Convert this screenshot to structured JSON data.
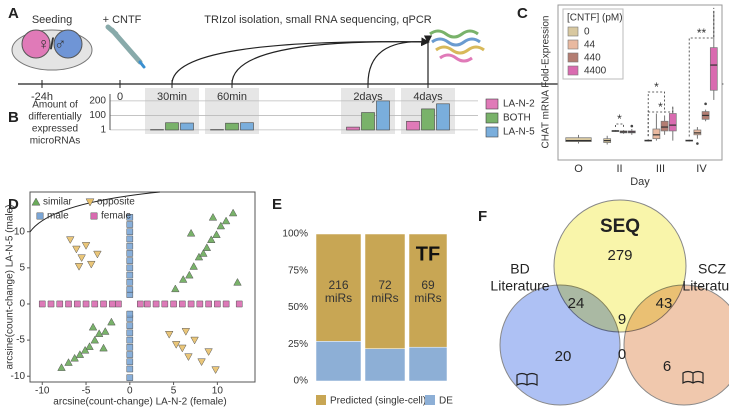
{
  "panel_labels": [
    "A",
    "B",
    "C",
    "D",
    "E",
    "F"
  ],
  "timeline": {
    "seeding": "Seeding",
    "dish_label": "♀/♂",
    "treatment": "+ CNTF",
    "protocol": "TRIzol isolation, small RNA sequencing, qPCR",
    "times": [
      "-24h",
      "0",
      "30min",
      "60min",
      "2days",
      "4days"
    ]
  },
  "chart_data": [
    {
      "type": "bar",
      "ylabel": [
        "Amount of",
        "differentially",
        "expressed",
        "microRNAs"
      ],
      "categories": [
        null,
        null,
        null,
        null
      ],
      "series": [
        {
          "name": "LA-N-2",
          "color": "#e07ab8",
          "values": [
            3,
            3,
            20,
            60
          ]
        },
        {
          "name": "BOTH",
          "color": "#79b26a",
          "values": [
            50,
            47,
            120,
            145
          ]
        },
        {
          "name": "LA-N-5",
          "color": "#7aaedc",
          "values": [
            48,
            50,
            200,
            180
          ]
        }
      ],
      "ylim": [
        0,
        220
      ],
      "yticks": [
        1,
        100,
        200
      ],
      "grid": true
    },
    {
      "type": "box",
      "xlabel": "Day",
      "ylabel": "CHAT mRNA Fold-Expression",
      "legend_title": "[CNTF] (pM)",
      "categories": [
        "O",
        "II",
        "III",
        "IV"
      ],
      "ylim": [
        0,
        8
      ],
      "series": [
        {
          "name": "0",
          "color": "#d8c8a0",
          "boxes": [
            {
              "min": 0.85,
              "q1": 0.95,
              "median": 1.0,
              "q3": 1.15,
              "max": 1.3
            },
            {
              "min": 0.8,
              "q1": 0.9,
              "median": 1.0,
              "q3": 1.1,
              "max": 1.25
            },
            {
              "min": 0.95,
              "q1": 0.98,
              "median": 1.0,
              "q3": 1.03,
              "max": 1.08
            },
            {
              "min": 0.95,
              "q1": 0.98,
              "median": 1.0,
              "q3": 1.03,
              "max": 1.06
            }
          ]
        },
        {
          "name": "44",
          "color": "#e9b9a0",
          "boxes": [
            null,
            {
              "min": 1.45,
              "q1": 1.48,
              "median": 1.5,
              "q3": 1.52,
              "max": 1.55
            },
            {
              "min": 1.0,
              "q1": 1.1,
              "median": 1.3,
              "q3": 1.6,
              "max": 2.4
            },
            {
              "min": 1.1,
              "q1": 1.3,
              "median": 1.4,
              "q3": 1.55,
              "max": 1.7,
              "outliers": [
                0.85
              ]
            }
          ]
        },
        {
          "name": "440",
          "color": "#b37d72",
          "boxes": [
            null,
            {
              "min": 1.35,
              "q1": 1.4,
              "median": 1.45,
              "q3": 1.5,
              "max": 1.55
            },
            {
              "min": 1.3,
              "q1": 1.5,
              "median": 1.7,
              "q3": 2.0,
              "max": 2.3
            },
            {
              "min": 2.0,
              "q1": 2.1,
              "median": 2.3,
              "q3": 2.5,
              "max": 2.6,
              "outliers": [
                2.9
              ]
            }
          ]
        },
        {
          "name": "4400",
          "color": "#d96bb0",
          "boxes": [
            null,
            {
              "min": 1.3,
              "q1": 1.4,
              "median": 1.45,
              "q3": 1.5,
              "max": 1.6,
              "outliers": [
                1.75
              ]
            },
            {
              "min": 1.0,
              "q1": 1.5,
              "median": 1.8,
              "q3": 2.4,
              "max": 2.7
            },
            {
              "min": 3.1,
              "q1": 3.6,
              "median": 4.9,
              "q3": 5.8,
              "max": 7.7
            }
          ]
        }
      ],
      "annotations": [
        "*",
        "*",
        "*",
        "**"
      ]
    },
    {
      "type": "scatter",
      "xlabel": "arcsine(count-change) LA-N-2 (female)",
      "ylabel": "arcsine(count-change) LA-N-5 (male)",
      "xlim": [
        -11.4,
        14.3
      ],
      "ylim": [
        -10.8,
        15.5
      ],
      "xticks": [
        -10,
        -5,
        0,
        5,
        10
      ],
      "yticks": [
        -10,
        -5,
        0,
        5,
        10
      ],
      "series": [
        {
          "name": "similar",
          "color": "#6aaa5a",
          "marker": "triangle-up",
          "x": [
            5.2,
            6.1,
            6.8,
            7.3,
            7.9,
            8.4,
            8.8,
            9.3,
            9.9,
            10.4,
            11.0,
            11.8,
            12.3,
            7.0,
            9.5,
            -2.1,
            -2.8,
            -3.5,
            -4.0,
            -4.6,
            -5.1,
            -5.7,
            -6.3,
            -7.0,
            -7.8,
            -4.2,
            -3.0
          ],
          "y": [
            2.1,
            3.4,
            4.0,
            5.2,
            6.5,
            7.0,
            7.8,
            8.9,
            9.6,
            10.8,
            11.5,
            12.6,
            3.0,
            9.8,
            12.0,
            -2.5,
            -3.8,
            -4.1,
            -5.0,
            -5.9,
            -6.4,
            -7.0,
            -7.5,
            -8.1,
            -8.8,
            -3.2,
            -6.1
          ]
        },
        {
          "name": "opposite",
          "color": "#e8c06a",
          "marker": "triangle-down",
          "x": [
            -6.8,
            -6.1,
            -5.5,
            -5.0,
            -4.4,
            -3.7,
            -5.8,
            4.5,
            5.3,
            6.0,
            6.7,
            7.4,
            8.2,
            9.0,
            9.8,
            6.4
          ],
          "y": [
            8.9,
            7.6,
            6.4,
            8.1,
            5.5,
            6.9,
            5.2,
            -4.2,
            -5.6,
            -6.1,
            -7.3,
            -5.0,
            -8.0,
            -6.6,
            -9.1,
            -3.8
          ]
        },
        {
          "name": "male",
          "color": "#7ba6d6",
          "marker": "square",
          "x": [
            0,
            0,
            0,
            0,
            0,
            0,
            0,
            0,
            0,
            0,
            0,
            0,
            0,
            0,
            0,
            0,
            0,
            0,
            0,
            0,
            0,
            0
          ],
          "y": [
            -10.2,
            -9,
            -8,
            -7,
            -6,
            -5,
            -4,
            -3,
            -2,
            -1.4,
            1.3,
            2,
            3,
            4,
            5,
            6,
            7,
            8,
            9,
            10,
            11,
            12
          ]
        },
        {
          "name": "female",
          "color": "#d96bb0",
          "marker": "square",
          "x": [
            -10,
            -9,
            -8,
            -7,
            -6,
            -5,
            -4,
            -3,
            -2,
            -1.3,
            1.2,
            2,
            3,
            4,
            5,
            6,
            7,
            8,
            9,
            10,
            11,
            12.5
          ],
          "y": [
            0,
            0,
            0,
            0,
            0,
            0,
            0,
            0,
            0,
            0,
            0,
            0,
            0,
            0,
            0,
            0,
            0,
            0,
            0,
            0,
            0,
            0
          ]
        }
      ]
    },
    {
      "type": "stacked_bar",
      "categories": [
        null,
        null,
        "TF"
      ],
      "bar_labels": [
        [
          "216",
          "miRs"
        ],
        [
          "72",
          "miRs"
        ],
        [
          "69",
          "miRs"
        ]
      ],
      "series": [
        {
          "name": "Predicted (single-cell)",
          "color": "#c8a654",
          "values": [
            73,
            78,
            77
          ]
        },
        {
          "name": "DE",
          "color": "#8dafd6",
          "values": [
            27,
            22,
            23
          ]
        }
      ],
      "ylim": [
        0,
        100
      ],
      "yticks": [
        {
          "value": 0,
          "label": "0%"
        },
        {
          "value": 25,
          "label": "25%"
        },
        {
          "value": 50,
          "label": "50%"
        },
        {
          "value": 75,
          "label": "75%"
        },
        {
          "value": 100,
          "label": "100%"
        }
      ]
    }
  ],
  "venn": {
    "sets": [
      {
        "name": [
          "SEQ"
        ],
        "color": "#f7f18e"
      },
      {
        "name": [
          "BD",
          "Literature"
        ],
        "color": "#93acf0"
      },
      {
        "name": [
          "SCZ",
          "Literature"
        ],
        "color": "#ebb592"
      }
    ],
    "regions": [
      279,
      24,
      43,
      9,
      20,
      0,
      6
    ]
  }
}
